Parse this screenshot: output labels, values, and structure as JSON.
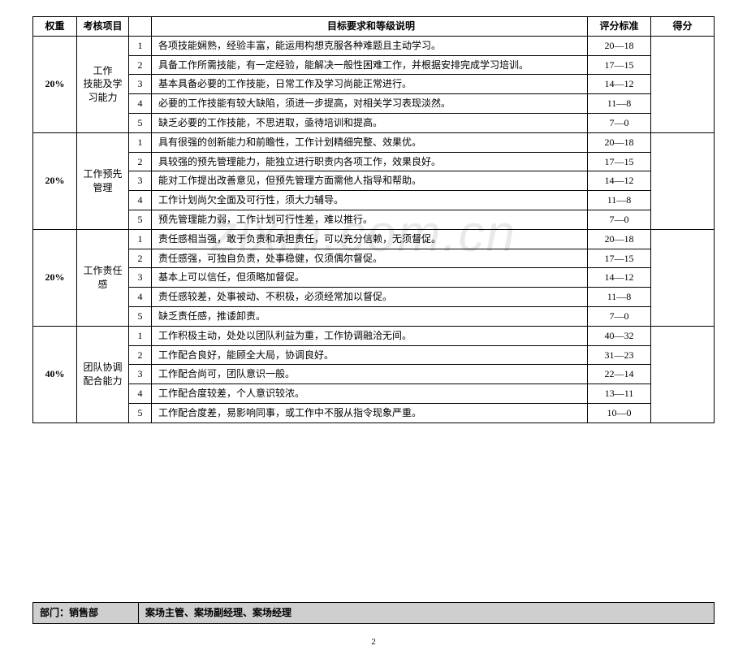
{
  "headers": {
    "weight": "权重",
    "item": "考核项目",
    "desc": "目标要求和等级说明",
    "score": "评分标准",
    "grade": "得分"
  },
  "groups": [
    {
      "weight": "20%",
      "item": "工作\n技能及学\n习能力",
      "rows": [
        {
          "n": "1",
          "desc": "各项技能娴熟，经验丰富，能运用构想克服各种难题且主动学习。",
          "score": "20—18"
        },
        {
          "n": "2",
          "desc": "具备工作所需技能，有一定经验，能解决一般性困难工作，并根据安排完成学习培训。",
          "score": "17—15"
        },
        {
          "n": "3",
          "desc": "基本具备必要的工作技能，日常工作及学习尚能正常进行。",
          "score": "14—12"
        },
        {
          "n": "4",
          "desc": "必要的工作技能有较大缺陷，须进一步提高，对相关学习表现淡然。",
          "score": "11—8"
        },
        {
          "n": "5",
          "desc": "缺乏必要的工作技能，不思进取，亟待培训和提高。",
          "score": "7—0"
        }
      ]
    },
    {
      "weight": "20%",
      "item": "工作预先\n管理",
      "rows": [
        {
          "n": "1",
          "desc": "具有很强的创新能力和前瞻性，工作计划精细完整、效果优。",
          "score": "20—18"
        },
        {
          "n": "2",
          "desc": "具较强的预先管理能力，能独立进行职责内各项工作，效果良好。",
          "score": "17—15"
        },
        {
          "n": "3",
          "desc": "能对工作提出改善意见，但预先管理方面需他人指导和帮助。",
          "score": "14—12"
        },
        {
          "n": "4",
          "desc": "工作计划尚欠全面及可行性，须大力辅导。",
          "score": "11—8"
        },
        {
          "n": "5",
          "desc": "预先管理能力弱，工作计划可行性差，难以推行。",
          "score": "7—0"
        }
      ]
    },
    {
      "weight": "20%",
      "item": "工作责任\n感",
      "rows": [
        {
          "n": "1",
          "desc": "责任感相当强，敢于负责和承担责任，可以充分信赖，无须督促。",
          "score": "20—18"
        },
        {
          "n": "2",
          "desc": "责任感强，可独自负责，处事稳健，仅须偶尔督促。",
          "score": "17—15"
        },
        {
          "n": "3",
          "desc": "基本上可以信任，但须略加督促。",
          "score": "14—12"
        },
        {
          "n": "4",
          "desc": "责任感较差，处事被动、不积极，必须经常加以督促。",
          "score": "11—8"
        },
        {
          "n": "5",
          "desc": "缺乏责任感，推诿卸责。",
          "score": "7—0"
        }
      ]
    },
    {
      "weight": "40%",
      "item": "团队协调\n配合能力",
      "rows": [
        {
          "n": "1",
          "desc": "工作积极主动，处处以团队利益为重，工作协调融洽无间。",
          "score": "40—32"
        },
        {
          "n": "2",
          "desc": "工作配合良好，能顾全大局，协调良好。",
          "score": "31—23"
        },
        {
          "n": "3",
          "desc": "工作配合尚可，团队意识一般。",
          "score": "22—14"
        },
        {
          "n": "4",
          "desc": "工作配合度较差，个人意识较浓。",
          "score": "13—11"
        },
        {
          "n": "5",
          "desc": "工作配合度差，易影响同事，或工作中不服从指令现象严重。",
          "score": "10—0"
        }
      ]
    }
  ],
  "footer": {
    "dept_label": "部门：销售部",
    "roles": "案场主管、案场副经理、案场经理"
  },
  "watermark": "zixin.com.cn",
  "page_number": "2"
}
